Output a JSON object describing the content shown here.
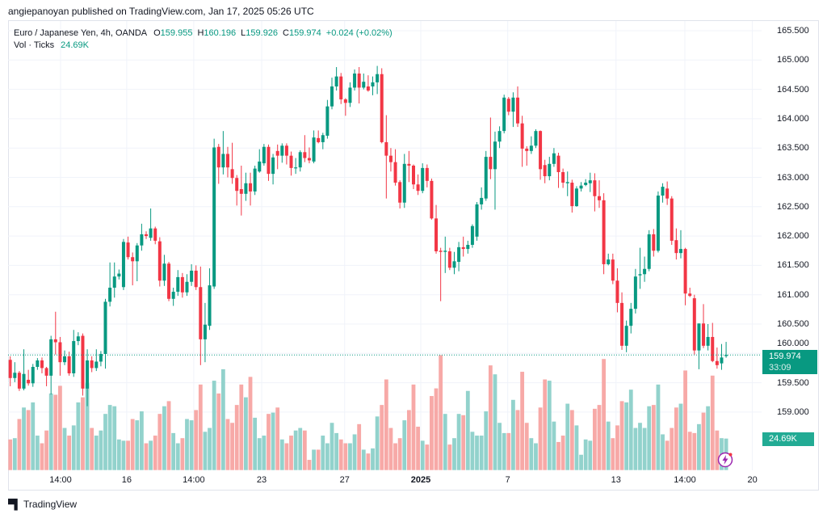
{
  "publish_line": "angiepanoyan published on TradingView.com, Jan 17, 2025 05:26 UTC",
  "legend": {
    "symbol": "Euro / Japanese Yen, 4h, OANDA",
    "o_label": "O",
    "o": "159.955",
    "h_label": "H",
    "h": "160.196",
    "l_label": "L",
    "l": "159.926",
    "c_label": "C",
    "c": "159.974",
    "change": "+0.024 (+0.02%)",
    "vol_label": "Vol · Ticks",
    "vol": "24.69K"
  },
  "last_price": {
    "value": "159.974",
    "countdown": "33:09",
    "volume": "24.69K"
  },
  "footer": {
    "brand": "TradingView",
    "logo_mark": "TV"
  },
  "colors": {
    "up": "#089981",
    "down": "#f23645",
    "vol_up": "#92d2cc",
    "vol_down": "#f7a9a7",
    "grid": "#f0f3fa",
    "last_line": "#089981",
    "alert": "#9c27b0"
  },
  "chart_data": {
    "type": "candlestick",
    "title": "Euro / Japanese Yen, 4h, OANDA",
    "ylim": [
      158.8,
      165.6
    ],
    "y_ticks": [
      "165.500",
      "165.000",
      "164.500",
      "164.000",
      "163.500",
      "163.000",
      "162.500",
      "162.000",
      "161.500",
      "161.000",
      "160.500",
      "160.000",
      "159.500",
      "159.000"
    ],
    "y_tick_values": [
      165.5,
      165.0,
      164.5,
      164.0,
      163.5,
      163.0,
      162.5,
      162.0,
      161.5,
      161.0,
      160.5,
      160.0,
      159.5,
      159.0
    ],
    "x_ticks": [
      {
        "label": "14:00",
        "index": 12.1,
        "bold": false
      },
      {
        "label": "16",
        "index": 26.7,
        "bold": false
      },
      {
        "label": "14:00",
        "index": 41.5,
        "bold": false
      },
      {
        "label": "23",
        "index": 56.5,
        "bold": false
      },
      {
        "label": "27",
        "index": 74.8,
        "bold": false
      },
      {
        "label": "2025",
        "index": 91.6,
        "bold": true
      },
      {
        "label": "7",
        "index": 110.8,
        "bold": false
      },
      {
        "label": "13",
        "index": 134.7,
        "bold": false
      },
      {
        "label": "14:00",
        "index": 149.9,
        "bold": false
      },
      {
        "label": "20",
        "index": 164.8,
        "bold": false
      }
    ],
    "last_value": 159.974,
    "volume_unit": "K",
    "ohlc": [
      [
        159.89,
        159.95,
        159.44,
        159.58
      ],
      [
        159.58,
        159.85,
        159.51,
        159.67
      ],
      [
        159.67,
        159.7,
        159.36,
        159.4
      ],
      [
        159.4,
        160.07,
        159.37,
        159.65
      ],
      [
        159.55,
        159.72,
        159.45,
        159.49
      ],
      [
        159.49,
        159.82,
        159.43,
        159.77
      ],
      [
        159.77,
        159.92,
        159.72,
        159.88
      ],
      [
        159.88,
        159.93,
        159.66,
        159.75
      ],
      [
        159.75,
        159.77,
        159.44,
        159.62
      ],
      [
        159.62,
        160.3,
        159.3,
        160.24
      ],
      [
        160.24,
        160.71,
        159.98,
        160.19
      ],
      [
        160.19,
        160.28,
        159.62,
        159.85
      ],
      [
        159.85,
        160.05,
        159.8,
        159.95
      ],
      [
        159.95,
        160.03,
        159.62,
        159.66
      ],
      [
        159.66,
        160.4,
        159.6,
        160.21
      ],
      [
        160.21,
        160.36,
        160.14,
        160.29
      ],
      [
        160.3,
        160.34,
        159.28,
        159.4
      ],
      [
        159.4,
        160.07,
        159.1,
        159.88
      ],
      [
        159.88,
        159.95,
        159.68,
        159.75
      ],
      [
        159.75,
        160.07,
        159.7,
        159.86
      ],
      [
        159.86,
        160.04,
        159.78,
        159.99
      ],
      [
        159.99,
        160.93,
        159.74,
        160.88
      ],
      [
        160.88,
        161.55,
        160.8,
        161.12
      ],
      [
        161.12,
        161.55,
        160.95,
        161.31
      ],
      [
        161.31,
        161.43,
        161.26,
        161.36
      ],
      [
        161.13,
        161.95,
        161.08,
        161.9
      ],
      [
        161.89,
        161.99,
        161.6,
        161.64
      ],
      [
        161.64,
        161.72,
        161.16,
        161.57
      ],
      [
        161.57,
        161.88,
        161.23,
        161.84
      ],
      [
        161.84,
        162.21,
        161.75,
        162.03
      ],
      [
        162.03,
        162.08,
        161.95,
        162.0
      ],
      [
        161.97,
        162.47,
        161.92,
        162.13
      ],
      [
        162.13,
        162.16,
        161.86,
        161.92
      ],
      [
        161.91,
        161.98,
        161.14,
        161.24
      ],
      [
        161.24,
        161.68,
        161.15,
        161.53
      ],
      [
        161.53,
        161.56,
        160.89,
        160.93
      ],
      [
        160.93,
        161.12,
        160.81,
        161.05
      ],
      [
        161.05,
        161.42,
        160.98,
        161.3
      ],
      [
        161.3,
        161.37,
        160.95,
        161.04
      ],
      [
        161.04,
        161.35,
        160.98,
        161.22
      ],
      [
        161.22,
        161.52,
        161.15,
        161.41
      ],
      [
        161.41,
        161.5,
        161.08,
        161.13
      ],
      [
        161.13,
        161.48,
        159.8,
        160.24
      ],
      [
        160.24,
        160.86,
        159.85,
        160.49
      ],
      [
        160.47,
        161.45,
        160.4,
        161.16
      ],
      [
        161.14,
        163.66,
        161.1,
        163.51
      ],
      [
        163.52,
        163.57,
        162.89,
        163.17
      ],
      [
        163.17,
        163.79,
        163.05,
        163.4
      ],
      [
        163.4,
        163.52,
        163.0,
        163.17
      ],
      [
        163.14,
        163.59,
        162.89,
        162.99
      ],
      [
        162.99,
        163.04,
        162.52,
        162.77
      ],
      [
        162.8,
        163.2,
        162.35,
        162.72
      ],
      [
        162.72,
        163.08,
        162.6,
        162.9
      ],
      [
        162.9,
        163.08,
        162.52,
        162.76
      ],
      [
        162.76,
        163.2,
        162.7,
        163.15
      ],
      [
        163.1,
        163.48,
        163.08,
        163.27
      ],
      [
        163.24,
        163.57,
        163.2,
        163.52
      ],
      [
        163.52,
        163.56,
        162.94,
        163.06
      ],
      [
        163.06,
        163.4,
        162.88,
        163.34
      ],
      [
        163.45,
        163.56,
        163.14,
        163.37
      ],
      [
        163.37,
        163.58,
        163.25,
        163.54
      ],
      [
        163.54,
        163.58,
        163.22,
        163.37
      ],
      [
        163.37,
        163.44,
        163.03,
        163.16
      ],
      [
        163.17,
        163.33,
        163.06,
        163.17
      ],
      [
        163.17,
        163.46,
        163.1,
        163.43
      ],
      [
        163.43,
        163.72,
        163.26,
        163.33
      ],
      [
        163.33,
        163.51,
        163.24,
        163.29
      ],
      [
        163.27,
        163.8,
        163.24,
        163.68
      ],
      [
        163.67,
        163.8,
        163.58,
        163.6
      ],
      [
        163.6,
        163.76,
        163.48,
        163.72
      ],
      [
        163.71,
        164.32,
        163.66,
        164.21
      ],
      [
        164.21,
        164.7,
        164.16,
        164.55
      ],
      [
        164.55,
        164.88,
        164.48,
        164.72
      ],
      [
        164.72,
        164.78,
        164.25,
        164.33
      ],
      [
        164.33,
        164.35,
        164.05,
        164.27
      ],
      [
        164.27,
        164.62,
        164.2,
        164.53
      ],
      [
        164.53,
        164.84,
        164.48,
        164.77
      ],
      [
        164.77,
        164.88,
        164.26,
        164.53
      ],
      [
        164.53,
        164.77,
        164.5,
        164.63
      ],
      [
        164.55,
        164.74,
        164.46,
        164.48
      ],
      [
        164.55,
        164.72,
        164.4,
        164.62
      ],
      [
        164.62,
        164.9,
        164.42,
        164.76
      ],
      [
        164.76,
        164.86,
        163.58,
        163.6
      ],
      [
        163.6,
        164.06,
        162.64,
        163.37
      ],
      [
        163.37,
        163.5,
        163.1,
        163.26
      ],
      [
        163.26,
        163.48,
        162.86,
        162.91
      ],
      [
        162.92,
        162.95,
        162.47,
        162.57
      ],
      [
        162.57,
        163.4,
        162.48,
        163.23
      ],
      [
        163.23,
        163.45,
        162.92,
        163.2
      ],
      [
        163.2,
        163.22,
        162.8,
        162.88
      ],
      [
        162.88,
        163.05,
        162.7,
        162.77
      ],
      [
        162.77,
        163.24,
        162.73,
        163.16
      ],
      [
        163.16,
        163.22,
        162.83,
        162.94
      ],
      [
        162.94,
        162.98,
        162.28,
        162.3
      ],
      [
        162.3,
        162.53,
        161.7,
        161.74
      ],
      [
        161.75,
        161.8,
        160.89,
        161.73
      ],
      [
        161.73,
        161.99,
        161.37,
        161.75
      ],
      [
        161.74,
        161.8,
        161.42,
        161.46
      ],
      [
        161.46,
        161.73,
        161.35,
        161.57
      ],
      [
        161.56,
        161.9,
        161.4,
        161.81
      ],
      [
        161.81,
        161.99,
        161.65,
        161.78
      ],
      [
        161.78,
        161.92,
        161.7,
        161.85
      ],
      [
        161.85,
        162.2,
        161.8,
        162.17
      ],
      [
        161.99,
        162.58,
        161.92,
        162.54
      ],
      [
        162.54,
        162.83,
        162.45,
        162.65
      ],
      [
        162.64,
        163.45,
        162.6,
        163.35
      ],
      [
        163.35,
        164.02,
        162.97,
        163.14
      ],
      [
        163.14,
        163.78,
        162.45,
        163.61
      ],
      [
        163.61,
        163.87,
        163.5,
        163.79
      ],
      [
        163.79,
        164.41,
        163.75,
        164.36
      ],
      [
        164.34,
        164.37,
        164.06,
        164.12
      ],
      [
        164.12,
        164.45,
        163.86,
        164.36
      ],
      [
        164.36,
        164.55,
        163.86,
        163.92
      ],
      [
        163.92,
        164.05,
        163.18,
        163.49
      ],
      [
        163.49,
        163.53,
        163.2,
        163.45
      ],
      [
        163.45,
        163.7,
        163.4,
        163.54
      ],
      [
        163.54,
        163.82,
        163.5,
        163.79
      ],
      [
        163.79,
        163.8,
        162.96,
        163.14
      ],
      [
        163.21,
        163.3,
        162.9,
        163.02
      ],
      [
        163.02,
        163.35,
        162.95,
        163.23
      ],
      [
        163.23,
        163.5,
        163.18,
        163.41
      ],
      [
        163.37,
        163.42,
        162.82,
        163.09
      ],
      [
        163.09,
        163.15,
        162.82,
        162.91
      ],
      [
        162.9,
        163.1,
        162.68,
        162.92
      ],
      [
        162.91,
        162.96,
        162.4,
        162.51
      ],
      [
        162.51,
        162.85,
        162.5,
        162.81
      ],
      [
        162.81,
        162.92,
        162.76,
        162.86
      ],
      [
        162.87,
        162.97,
        162.85,
        162.91
      ],
      [
        162.9,
        163.08,
        162.75,
        162.95
      ],
      [
        162.95,
        163.07,
        162.42,
        162.68
      ],
      [
        162.68,
        162.95,
        162.48,
        162.61
      ],
      [
        162.61,
        162.73,
        161.35,
        161.52
      ],
      [
        161.52,
        161.7,
        161.5,
        161.6
      ],
      [
        161.6,
        161.7,
        161.18,
        161.24
      ],
      [
        161.24,
        161.45,
        160.7,
        160.86
      ],
      [
        160.86,
        161.04,
        160.06,
        160.13
      ],
      [
        160.13,
        160.56,
        160.02,
        160.47
      ],
      [
        160.47,
        160.86,
        160.34,
        160.76
      ],
      [
        160.76,
        161.44,
        160.68,
        161.31
      ],
      [
        161.33,
        161.8,
        161.1,
        161.35
      ],
      [
        161.35,
        161.65,
        161.22,
        161.44
      ],
      [
        161.44,
        162.1,
        161.4,
        162.03
      ],
      [
        162.03,
        162.12,
        161.65,
        161.75
      ],
      [
        161.75,
        162.76,
        161.72,
        162.69
      ],
      [
        162.69,
        162.9,
        162.57,
        162.84
      ],
      [
        162.81,
        162.93,
        162.53,
        162.64
      ],
      [
        162.64,
        162.68,
        161.85,
        161.92
      ],
      [
        161.93,
        162.13,
        161.6,
        161.71
      ],
      [
        161.71,
        162.1,
        161.62,
        161.78
      ],
      [
        161.78,
        161.8,
        160.82,
        161.02
      ],
      [
        161.02,
        161.12,
        160.96,
        160.98
      ],
      [
        160.94,
        161.0,
        159.98,
        160.05
      ],
      [
        160.05,
        160.51,
        159.73,
        160.51
      ],
      [
        160.51,
        160.84,
        160.09,
        160.13
      ],
      [
        160.13,
        160.5,
        160.05,
        160.28
      ],
      [
        160.28,
        160.52,
        159.85,
        159.87
      ],
      [
        159.87,
        160.1,
        159.74,
        159.8
      ],
      [
        159.83,
        160.16,
        159.72,
        159.93
      ],
      [
        159.955,
        160.196,
        159.926,
        159.974
      ]
    ],
    "volume": [
      24,
      25,
      40,
      49,
      47,
      53,
      27,
      21,
      31,
      60,
      59,
      66,
      33,
      27,
      35,
      53,
      57,
      68,
      33,
      27,
      31,
      44,
      51,
      50,
      24,
      23,
      23,
      40,
      39,
      46,
      21,
      23,
      27,
      44,
      50,
      54,
      29,
      21,
      25,
      40,
      39,
      47,
      67,
      30,
      33,
      70,
      60,
      79,
      40,
      37,
      51,
      67,
      57,
      73,
      41,
      25,
      27,
      44,
      45,
      49,
      24,
      21,
      27,
      31,
      33,
      31,
      8,
      16,
      16,
      27,
      21,
      37,
      29,
      24,
      21,
      21,
      28,
      36,
      16,
      13,
      17,
      42,
      51,
      71,
      33,
      21,
      25,
      39,
      47,
      67,
      34,
      23,
      20,
      58,
      64,
      90,
      44,
      20,
      25,
      44,
      43,
      62,
      30,
      27,
      27,
      46,
      82,
      75,
      37,
      29,
      29,
      55,
      47,
      77,
      37,
      25,
      21,
      49,
      71,
      70,
      38,
      22,
      27,
      52,
      47,
      35,
      12,
      24,
      23,
      48,
      51,
      87,
      38,
      25,
      35,
      54,
      53,
      63,
      33,
      37,
      33,
      50,
      51,
      67,
      28,
      23,
      33,
      49,
      52,
      78,
      30,
      29,
      36,
      45,
      50,
      74,
      31,
      25,
      24.69
    ]
  }
}
